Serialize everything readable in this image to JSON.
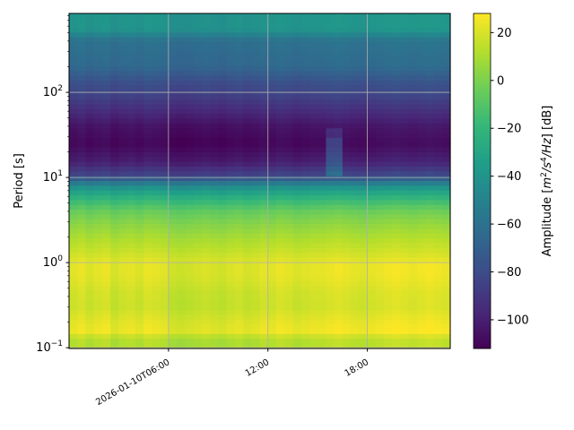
{
  "chart_data": {
    "type": "heatmap",
    "ylabel": "Period [s]",
    "y_scale": "log",
    "ylim": [
      0.098,
      845
    ],
    "y_ticks": [
      {
        "value": 100,
        "base": "10",
        "exp": "2"
      },
      {
        "value": 10,
        "base": "10",
        "exp": "1"
      },
      {
        "value": 1,
        "base": "10",
        "exp": "0"
      },
      {
        "value": 0.1,
        "base": "10",
        "exp": "−1"
      }
    ],
    "x_range": [
      "2026-01-10T00:00",
      "2026-01-10T23:00"
    ],
    "x_ticks": [
      {
        "hour": 6,
        "label": "2026-01-10T06:00"
      },
      {
        "hour": 12,
        "label": "12:00"
      },
      {
        "hour": 18,
        "label": "18:00"
      }
    ],
    "grid": true,
    "colormap": "viridis",
    "colorbar": {
      "label_prefix": "Amplitude [",
      "label_m": "m",
      "label_m_exp": "2",
      "label_slash1": "/",
      "label_s": "s",
      "label_s_exp": "4",
      "label_slash2": "/",
      "label_hz": "Hz",
      "label_suffix": "] [dB]",
      "range": [
        -112,
        28
      ],
      "ticks": [
        "20",
        "0",
        "−20",
        "−40",
        "−60",
        "−80",
        "−100"
      ],
      "tick_values": [
        20,
        0,
        -20,
        -40,
        -60,
        -80,
        -100
      ]
    },
    "time_step_hours": 0.5,
    "period_profile": {
      "period_s": [
        845,
        550,
        400,
        200,
        130,
        90,
        60,
        40,
        25,
        15,
        11,
        9.5,
        8,
        6.5,
        5,
        4,
        3,
        2,
        1.3,
        1,
        0.7,
        0.45,
        0.3,
        0.2,
        0.16,
        0.145,
        0.13,
        0.098
      ],
      "amplitude_db": [
        -40,
        -40,
        -60,
        -65,
        -78,
        -85,
        -95,
        -105,
        -110,
        -100,
        -85,
        -70,
        -45,
        -30,
        -15,
        -5,
        2,
        10,
        17,
        22,
        22,
        18,
        17,
        22,
        24,
        24,
        12,
        12
      ]
    },
    "time_offsets_db": [
      0,
      2,
      -1,
      1,
      2,
      -2,
      0,
      1,
      -1,
      2,
      1,
      0,
      -3,
      -4,
      -3,
      -2,
      -1,
      -2,
      -3,
      -1,
      0,
      -2,
      -1,
      1,
      0,
      2,
      1,
      -1,
      0,
      1,
      1,
      2,
      3,
      2,
      1,
      0,
      1,
      2,
      3,
      4,
      3,
      2,
      3,
      4,
      3,
      2
    ],
    "anomaly": {
      "start_hour": 15.5,
      "end_hour": 16.5,
      "period_s": [
        10,
        40
      ],
      "amplitude_db_increase": 22
    }
  }
}
